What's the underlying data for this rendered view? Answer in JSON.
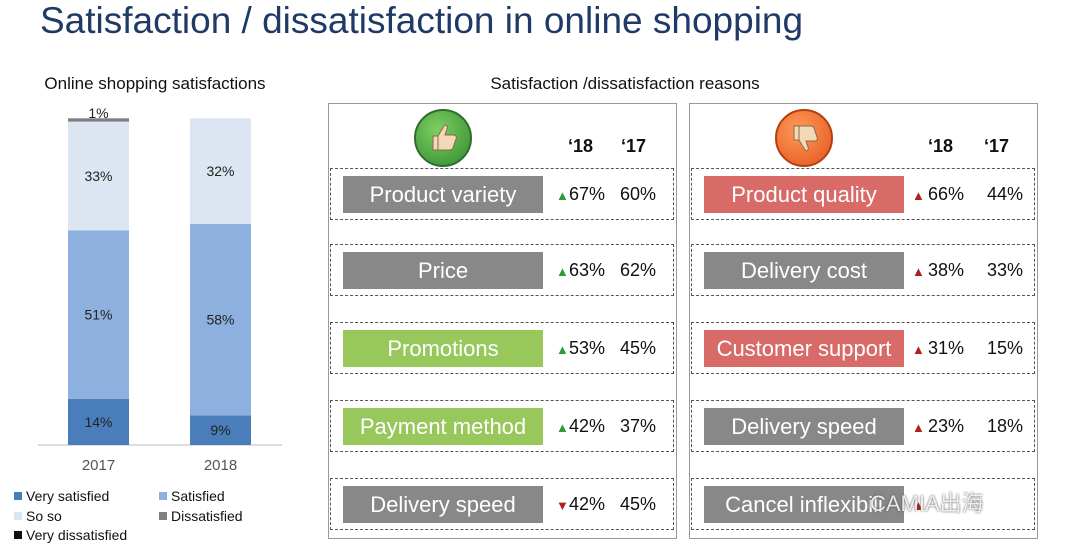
{
  "title": "Satisfaction / dissatisfaction in online shopping",
  "chart_data": {
    "type": "bar",
    "stacked": true,
    "title": "Online shopping satisfactions",
    "categories": [
      "2017",
      "2018"
    ],
    "series": [
      {
        "name": "Very satisfied",
        "values": [
          14,
          9
        ],
        "labels": [
          "14%",
          "9%"
        ],
        "color": "#4a7ebb"
      },
      {
        "name": "Satisfied",
        "values": [
          51,
          58
        ],
        "labels": [
          "51%",
          "58%"
        ],
        "color": "#8db0de"
      },
      {
        "name": "So so",
        "values": [
          33,
          32
        ],
        "labels": [
          "33%",
          "32%"
        ],
        "color": "#dce6f3"
      },
      {
        "name": "Dissatisfied",
        "values": [
          1,
          0
        ],
        "labels": [
          "1%",
          ""
        ],
        "color": "#7f7f7f"
      },
      {
        "name": "Very dissatisfied",
        "values": [
          0,
          0
        ],
        "labels": [
          "",
          ""
        ],
        "color": "#111111"
      }
    ],
    "ylim": [
      0,
      100
    ],
    "legend": "bottom"
  },
  "reasons": {
    "title": "Satisfaction /dissatisfaction reasons",
    "year_labels": [
      "‘18",
      "‘17"
    ],
    "satisfaction": {
      "icon": "thumbs-up-icon",
      "rows": [
        {
          "label": "Product variety",
          "v18": "67%",
          "v17": "60%",
          "trend": "up",
          "style": "grey"
        },
        {
          "label": "Price",
          "v18": "63%",
          "v17": "62%",
          "trend": "up",
          "style": "grey"
        },
        {
          "label": "Promotions",
          "v18": "53%",
          "v17": "45%",
          "trend": "up",
          "style": "green"
        },
        {
          "label": "Payment method",
          "v18": "42%",
          "v17": "37%",
          "trend": "up",
          "style": "green"
        },
        {
          "label": "Delivery speed",
          "v18": "42%",
          "v17": "45%",
          "trend": "down",
          "style": "grey"
        }
      ]
    },
    "dissatisfaction": {
      "icon": "thumbs-down-icon",
      "rows": [
        {
          "label": "Product quality",
          "v18": "66%",
          "v17": "44%",
          "trend": "up",
          "style": "red"
        },
        {
          "label": "Delivery cost",
          "v18": "38%",
          "v17": "33%",
          "trend": "up",
          "style": "grey"
        },
        {
          "label": "Customer support",
          "v18": "31%",
          "v17": "15%",
          "trend": "up",
          "style": "red"
        },
        {
          "label": "Delivery speed",
          "v18": "23%",
          "v17": "18%",
          "trend": "up",
          "style": "grey"
        },
        {
          "label": "Cancel inflexibili",
          "v18": "",
          "v17": "",
          "trend": "up",
          "style": "grey"
        }
      ]
    }
  },
  "watermark": "CAMIA出海",
  "symbols": {
    "up": "▲",
    "down": "▼"
  }
}
